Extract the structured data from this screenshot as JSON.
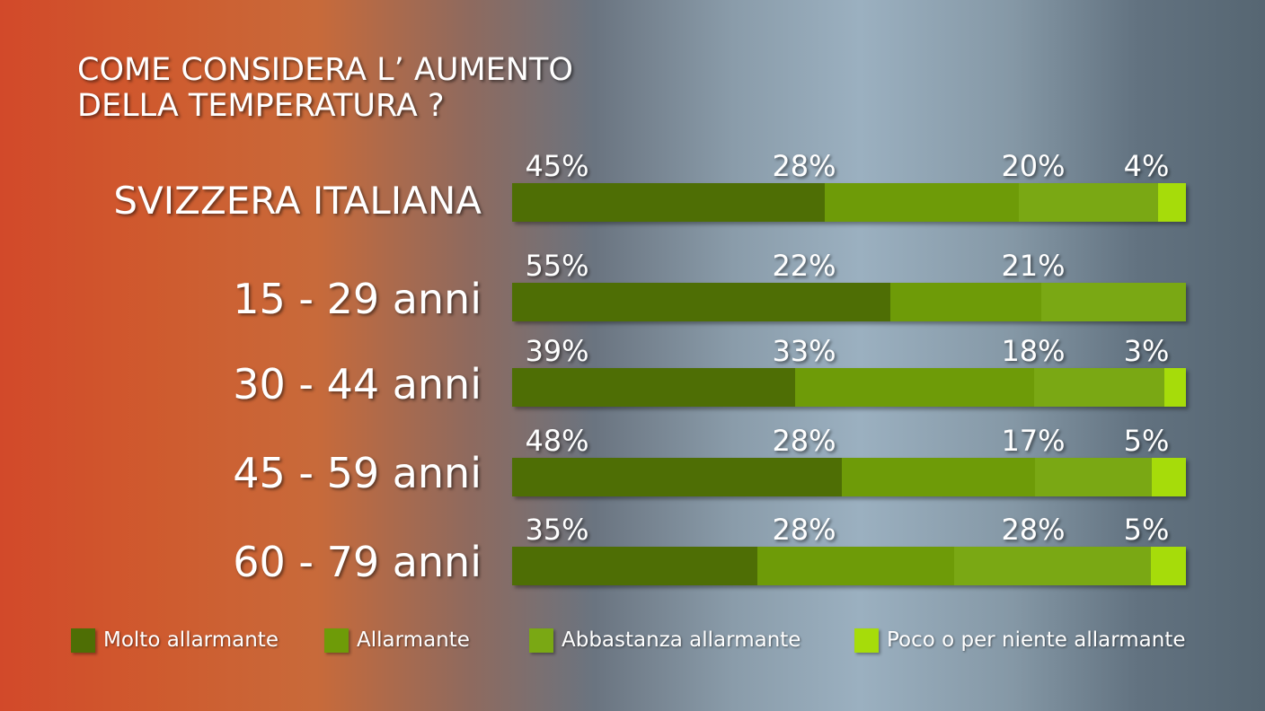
{
  "chart_data": {
    "type": "bar",
    "stacked": true,
    "orientation": "horizontal",
    "title": "COME CONSIDERA L’ AUMENTO DELLA TEMPERATURA ?",
    "title_lines": [
      "COME CONSIDERA L’ AUMENTO",
      "DELLA TEMPERATURA ?"
    ],
    "categories": [
      "SVIZZERA ITALIANA",
      "15 - 29 anni",
      "30 - 44 anni",
      "45 - 59 anni",
      "60 - 79 anni"
    ],
    "series": [
      {
        "name": "Molto allarmante",
        "color": "#4e6e05",
        "values": [
          45,
          55,
          39,
          48,
          35
        ]
      },
      {
        "name": "Allarmante",
        "color": "#6e9b08",
        "values": [
          28,
          22,
          33,
          28,
          28
        ]
      },
      {
        "name": "Abbastanza allarmante",
        "color": "#7aa814",
        "values": [
          20,
          21,
          18,
          17,
          28
        ]
      },
      {
        "name": "Poco o per niente allarmante",
        "color": "#a6dc0a",
        "values": [
          4,
          null,
          3,
          5,
          5
        ]
      }
    ],
    "value_labels": [
      [
        "45%",
        "28%",
        "20%",
        "4%"
      ],
      [
        "55%",
        "22%",
        "21%",
        ""
      ],
      [
        "39%",
        "33%",
        "18%",
        "3%"
      ],
      [
        "48%",
        "28%",
        "17%",
        "5%"
      ],
      [
        "35%",
        "28%",
        "28%",
        "5%"
      ]
    ],
    "legend_position": "bottom",
    "unit": "%"
  }
}
